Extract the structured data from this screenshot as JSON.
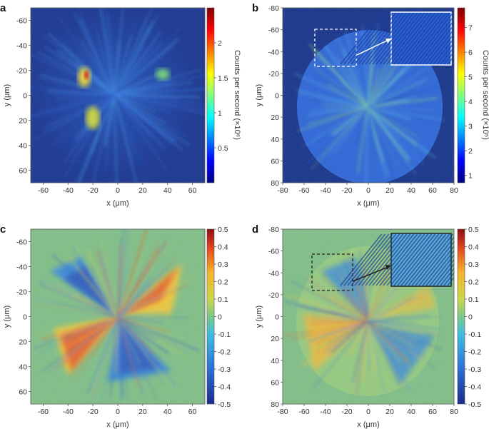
{
  "panels": [
    {
      "label": "a",
      "chart_data": {
        "type": "heatmap",
        "xlabel": "x (μm)",
        "ylabel": "y (μm)",
        "xlim": [
          -70,
          70
        ],
        "ylim": [
          -70,
          70
        ],
        "xticks": [
          -60,
          -40,
          -20,
          0,
          20,
          40,
          60
        ],
        "yticks": [
          -60,
          -40,
          -20,
          0,
          20,
          40,
          60
        ],
        "y_inverted": true,
        "colorbar": {
          "label": "Counts per second (×10⁶)",
          "ticks": [
            0.5,
            1.0,
            1.5,
            2.0
          ],
          "range": [
            0,
            2.5
          ],
          "colormap": "jet"
        },
        "features": [
          {
            "x": -25,
            "y": -20,
            "intensity": 2.3
          },
          {
            "x": -20,
            "y": 20,
            "intensity": 1.8
          },
          {
            "x": 38,
            "y": -20,
            "intensity": 1.4
          }
        ]
      }
    },
    {
      "label": "b",
      "chart_data": {
        "type": "heatmap",
        "xlabel": "x (μm)",
        "ylabel": "y (μm)",
        "xlim": [
          -80,
          80
        ],
        "ylim": [
          -80,
          80
        ],
        "xticks": [
          -80,
          -60,
          -40,
          -20,
          0,
          20,
          40,
          60,
          80
        ],
        "yticks": [
          -80,
          -60,
          -40,
          -20,
          0,
          20,
          40,
          60,
          80
        ],
        "y_inverted": true,
        "colorbar": {
          "label": "Counts per second (×10⁵)",
          "ticks": [
            1,
            2,
            3,
            4,
            5,
            6,
            7
          ],
          "range": [
            0.7,
            7.8
          ],
          "colormap": "jet"
        },
        "inset": {
          "region_x": [
            -50,
            -10
          ],
          "region_y": [
            -65,
            -30
          ],
          "description": "zoomed fringe pattern"
        }
      }
    },
    {
      "label": "c",
      "chart_data": {
        "type": "heatmap",
        "xlabel": "x (μm)",
        "ylabel": "y (μm)",
        "xlim": [
          -70,
          70
        ],
        "ylim": [
          -70,
          70
        ],
        "xticks": [
          -60,
          -40,
          -20,
          0,
          20,
          40,
          60
        ],
        "yticks": [
          -60,
          -40,
          -20,
          0,
          20,
          40,
          60
        ],
        "y_inverted": true,
        "colorbar": {
          "label": "",
          "ticks": [
            0.5,
            0.4,
            0.3,
            0.2,
            0.1,
            0,
            -0.1,
            -0.2,
            -0.3,
            -0.4,
            -0.5
          ],
          "range": [
            -0.5,
            0.5
          ],
          "colormap": "jet"
        }
      }
    },
    {
      "label": "d",
      "chart_data": {
        "type": "heatmap",
        "xlabel": "x (μm)",
        "ylabel": "y (μm)",
        "xlim": [
          -80,
          80
        ],
        "ylim": [
          -80,
          80
        ],
        "xticks": [
          -80,
          -60,
          -40,
          -20,
          0,
          20,
          40,
          60,
          80
        ],
        "yticks": [
          -80,
          -60,
          -40,
          -20,
          0,
          20,
          40,
          60,
          80
        ],
        "y_inverted": true,
        "colorbar": {
          "label": "",
          "ticks": [
            0.5,
            0.4,
            0.3,
            0.2,
            0.1,
            0,
            -0.1,
            -0.2,
            -0.3,
            -0.4,
            -0.5
          ],
          "range": [
            -0.5,
            0.5
          ],
          "colormap": "jet"
        },
        "inset": {
          "region_x": [
            -50,
            -20
          ],
          "region_y": [
            -73,
            -30
          ],
          "description": "zoomed fringe pattern"
        }
      }
    }
  ]
}
